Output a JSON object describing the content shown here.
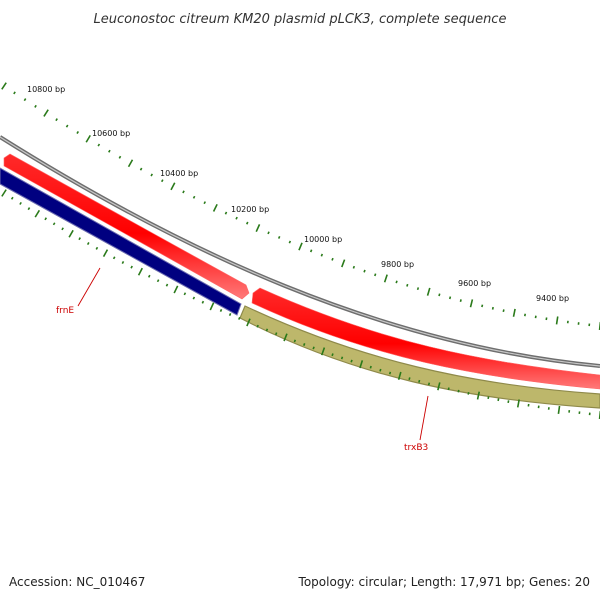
{
  "title": "Leuconostoc citreum KM20 plasmid pLCK3, complete sequence",
  "footer": {
    "accession": "Accession: NC_010467",
    "summary": "Topology: circular; Length: 17,971 bp; Genes: 20"
  },
  "ruler": {
    "color": "#2a7a1a",
    "labels": [
      "10800 bp",
      "10600 bp",
      "10400 bp",
      "10200 bp",
      "10000 bp",
      "9800 bp",
      "9600 bp",
      "9400 bp"
    ]
  },
  "genes": [
    {
      "name": "frnE",
      "color": "#000080"
    },
    {
      "name": "trxB3",
      "color": "#bdb76b"
    }
  ],
  "colors": {
    "backbone": "#808080",
    "forward_track": "#ff0000",
    "frnE": "#000080",
    "trxB3": "#bdb76b",
    "label": "#cc0000",
    "ticks": "#2a7a1a"
  }
}
